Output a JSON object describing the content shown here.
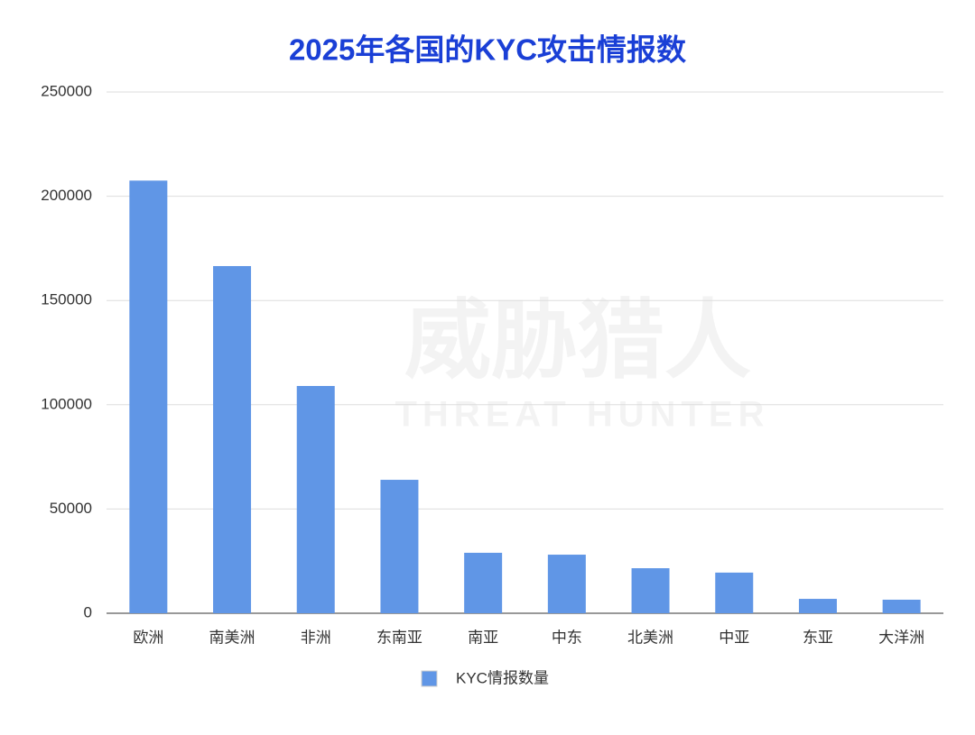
{
  "chart_data": {
    "type": "bar",
    "title": "2025年各国的KYC攻击情报数",
    "watermark": "威胁猎人",
    "watermark_sub": "THREAT HUNTER",
    "categories": [
      "欧洲",
      "南美洲",
      "非洲",
      "东南亚",
      "南亚",
      "中东",
      "北美洲",
      "中亚",
      "东亚",
      "大洋洲"
    ],
    "series": [
      {
        "name": "KYC情报数量",
        "color": "#6096e6",
        "values": [
          207500,
          166500,
          109000,
          64000,
          29000,
          28100,
          21600,
          19500,
          6900,
          6500
        ]
      }
    ],
    "ylim": [
      0,
      250000
    ],
    "yticks": [
      0,
      50000,
      100000,
      150000,
      200000,
      250000
    ],
    "grid": true,
    "legend": "bottom"
  }
}
